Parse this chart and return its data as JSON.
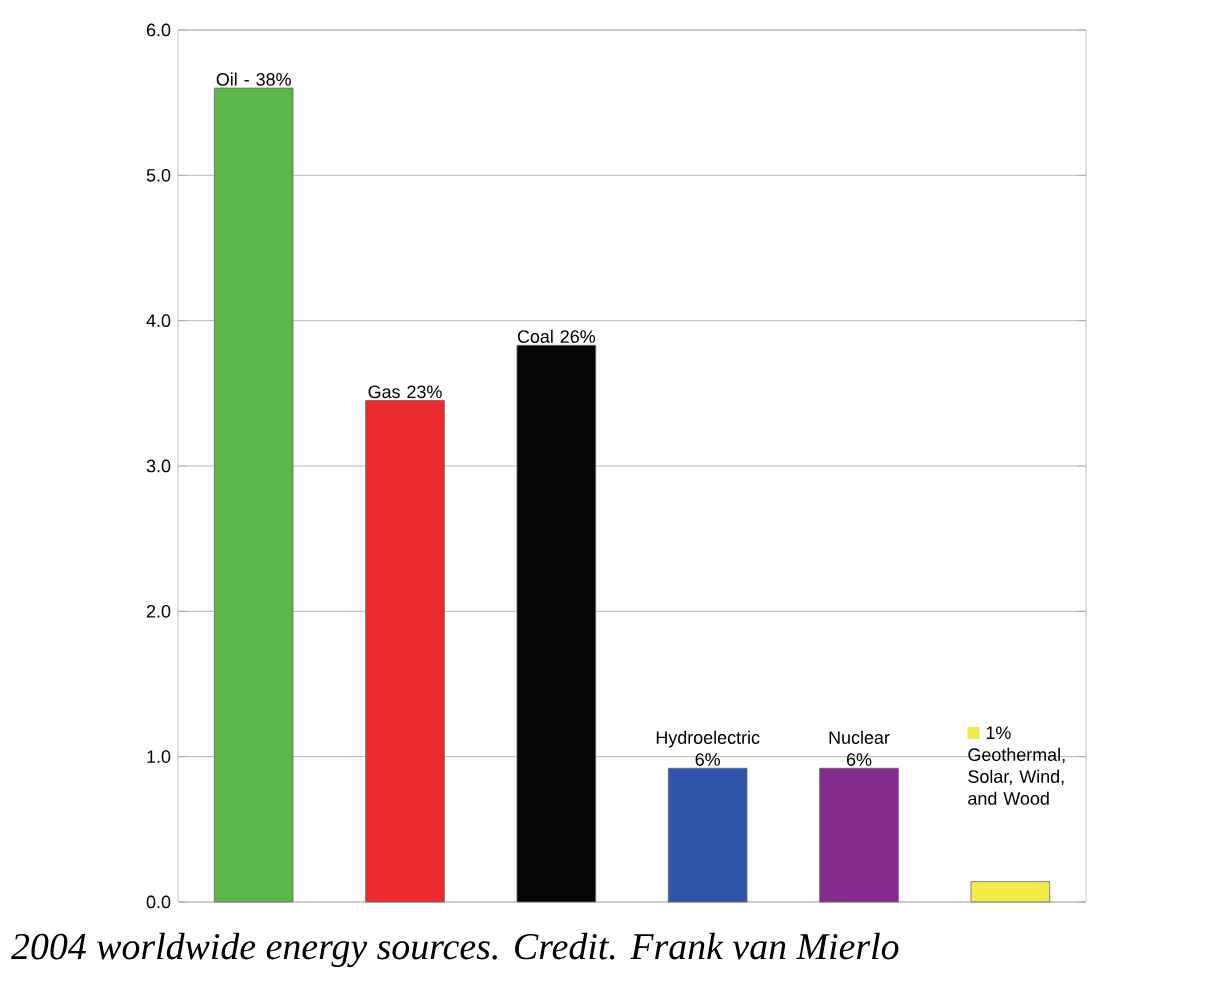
{
  "chart_data": {
    "type": "bar",
    "categories": [
      "Oil - 38%",
      "Gas 23%",
      "Coal 26%",
      "Hydroelectric 6%",
      "Nuclear 6%",
      "1% Geothermal, Solar, Wind, and Wood"
    ],
    "values": [
      5.6,
      3.45,
      3.83,
      0.92,
      0.92,
      0.14
    ],
    "colors": [
      "#5bb548",
      "#ec2b2f",
      "#050505",
      "#2f56a8",
      "#832c8b",
      "#f2e94a"
    ],
    "ylim": [
      0,
      6
    ],
    "yticks": [
      {
        "value": 0,
        "label": "0.0"
      },
      {
        "value": 1,
        "label": "1.0"
      },
      {
        "value": 2,
        "label": "2.0"
      },
      {
        "value": 3,
        "label": "3.0"
      },
      {
        "value": 4,
        "label": "4.0"
      },
      {
        "value": 5,
        "label": "5.0"
      },
      {
        "value": 6,
        "label": "6.0"
      }
    ],
    "grid": "y",
    "annotations": [
      "2004 worldwide energy sources. Credit. Frank van Mierlo"
    ]
  }
}
